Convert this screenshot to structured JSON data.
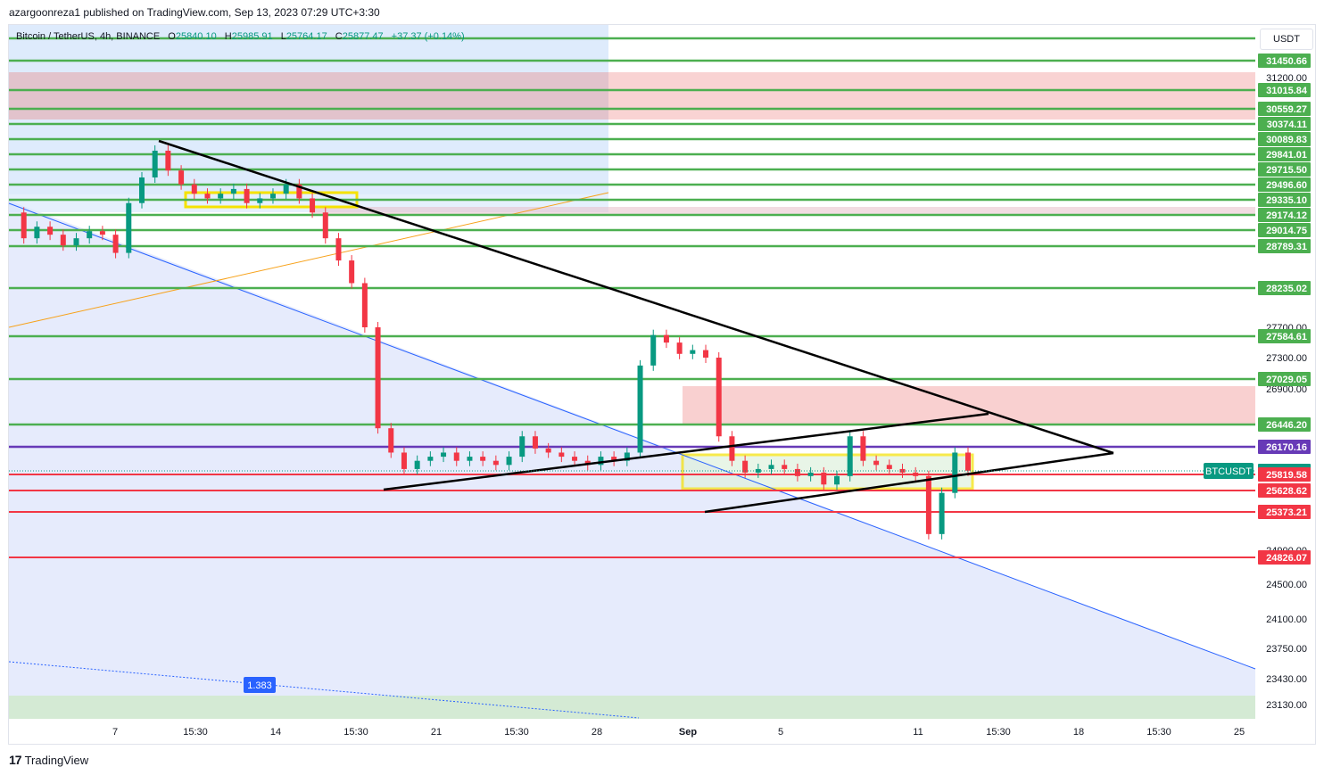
{
  "header": {
    "published_by": "azargoonreza1 published on TradingView.com, Sep 13, 2023 07:29 UTC+3:30"
  },
  "legend": {
    "symbol": "Bitcoin / TetherUS, 4h, BINANCE",
    "o_label": "O",
    "o": "25840.10",
    "h_label": "H",
    "h": "25985.91",
    "l_label": "L",
    "l": "25764.17",
    "c_label": "C",
    "c": "25877.47",
    "change": "+37.37 (+0.14%)"
  },
  "currency": "USDT",
  "footer": {
    "logo_text": "TradingView",
    "logo_mark": "17"
  },
  "fib_label": "1.383",
  "ticker_label": "BTCUSDT",
  "colors": {
    "green_level": "#4caf50",
    "red_level": "#f23645",
    "purple_level": "#673ab7",
    "teal_label": "#089981",
    "up_candle": "#089981",
    "down_candle": "#f23645"
  },
  "chart_data": {
    "type": "candlestick",
    "title": "",
    "xlabel": "",
    "ylabel": "",
    "price_axis_ticks": [
      "31200.00",
      "27700.00",
      "27300.00",
      "26900.00",
      "24900.00",
      "24500.00",
      "24100.00",
      "23750.00",
      "23430.00",
      "23130.00"
    ],
    "time_axis_ticks": [
      "7",
      "15:30",
      "14",
      "15:30",
      "21",
      "15:30",
      "28",
      "Sep",
      "5",
      "11",
      "15:30",
      "18",
      "15:30",
      "25"
    ],
    "green_levels": [
      31450.66,
      31015.84,
      30559.27,
      30374.11,
      30089.83,
      29841.01,
      29715.5,
      29496.6,
      29335.1,
      29174.12,
      29014.75,
      28789.31,
      28235.02,
      27584.61,
      27029.05,
      26446.2
    ],
    "green_level_labels": [
      "31450.66",
      "31015.84",
      "30559.27",
      "30374.11",
      "30089.83",
      "29841.01",
      "29715.50",
      "29496.60",
      "29335.10",
      "29174.12",
      "29014.75",
      "28789.31",
      "28235.02",
      "27584.61",
      "27029.05",
      "26446.20"
    ],
    "purple_level": 26170.16,
    "purple_level_label": "26170.16",
    "current_price": 25877.47,
    "current_price_label": "25877.47",
    "red_levels": [
      25819.58,
      25628.62,
      25373.21,
      24826.07
    ],
    "red_level_labels": [
      "25819.58",
      "25628.62",
      "25373.21",
      "24826.07"
    ],
    "price_samples": [
      [
        0,
        29200
      ],
      [
        1,
        28900
      ],
      [
        2,
        29050
      ],
      [
        3,
        28950
      ],
      [
        4,
        28800
      ],
      [
        5,
        28900
      ],
      [
        6,
        29000
      ],
      [
        7,
        28950
      ],
      [
        8,
        28700
      ],
      [
        9,
        29300
      ],
      [
        10,
        29600
      ],
      [
        11,
        29900
      ],
      [
        12,
        29700
      ],
      [
        13,
        29500
      ],
      [
        14,
        29400
      ],
      [
        15,
        29350
      ],
      [
        16,
        29400
      ],
      [
        17,
        29450
      ],
      [
        18,
        29300
      ],
      [
        19,
        29350
      ],
      [
        20,
        29400
      ],
      [
        21,
        29500
      ],
      [
        22,
        29350
      ],
      [
        23,
        29200
      ],
      [
        24,
        28900
      ],
      [
        25,
        28600
      ],
      [
        26,
        28300
      ],
      [
        27,
        27700
      ],
      [
        28,
        26400
      ],
      [
        29,
        26100
      ],
      [
        30,
        25900
      ],
      [
        31,
        26000
      ],
      [
        32,
        26050
      ],
      [
        33,
        26100
      ],
      [
        34,
        26000
      ],
      [
        35,
        26050
      ],
      [
        36,
        26000
      ],
      [
        37,
        25950
      ],
      [
        38,
        26050
      ],
      [
        39,
        26300
      ],
      [
        40,
        26150
      ],
      [
        41,
        26100
      ],
      [
        42,
        26050
      ],
      [
        43,
        26000
      ],
      [
        44,
        25950
      ],
      [
        45,
        26050
      ],
      [
        46,
        26000
      ],
      [
        47,
        26100
      ],
      [
        48,
        27200
      ],
      [
        49,
        27600
      ],
      [
        50,
        27500
      ],
      [
        51,
        27350
      ],
      [
        52,
        27400
      ],
      [
        53,
        27300
      ],
      [
        54,
        26300
      ],
      [
        55,
        26000
      ],
      [
        56,
        25850
      ],
      [
        57,
        25900
      ],
      [
        58,
        25950
      ],
      [
        59,
        25900
      ],
      [
        60,
        25800
      ],
      [
        61,
        25850
      ],
      [
        62,
        25700
      ],
      [
        63,
        25800
      ],
      [
        64,
        26300
      ],
      [
        65,
        26000
      ],
      [
        66,
        25950
      ],
      [
        67,
        25900
      ],
      [
        68,
        25850
      ],
      [
        69,
        25800
      ],
      [
        70,
        25100
      ],
      [
        71,
        25600
      ],
      [
        72,
        26100
      ],
      [
        73,
        25880
      ]
    ]
  }
}
